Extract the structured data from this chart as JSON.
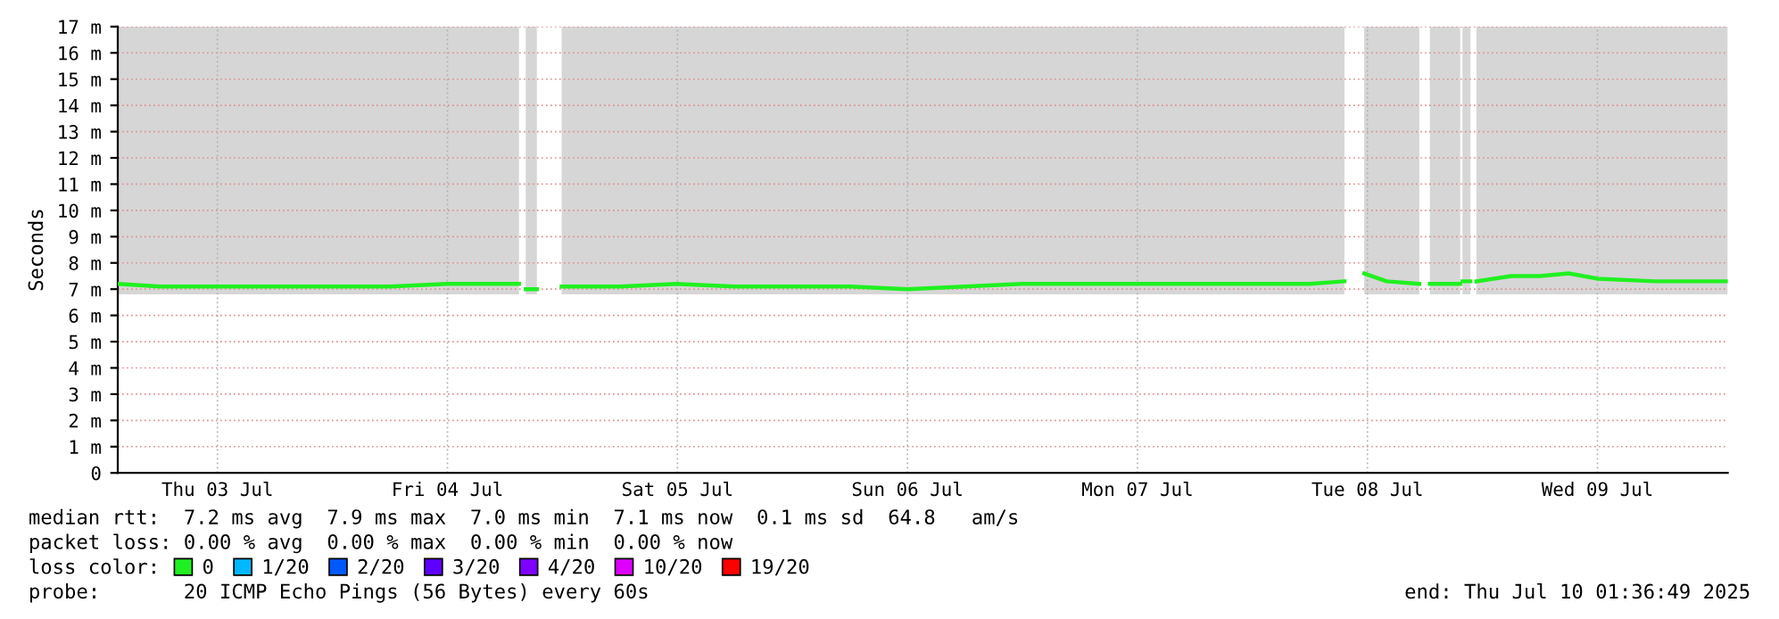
{
  "chart_data": {
    "type": "line",
    "ylabel": "Seconds",
    "xlim": [
      "2025-07-03T01:36",
      "2025-07-10T01:36"
    ],
    "xticks": [
      {
        "value": "2025-07-03T12:00",
        "label": "Thu 03 Jul"
      },
      {
        "value": "2025-07-04T12:00",
        "label": "Fri 04 Jul"
      },
      {
        "value": "2025-07-05T12:00",
        "label": "Sat 05 Jul"
      },
      {
        "value": "2025-07-06T12:00",
        "label": "Sun 06 Jul"
      },
      {
        "value": "2025-07-07T12:00",
        "label": "Mon 07 Jul"
      },
      {
        "value": "2025-07-08T12:00",
        "label": "Tue 08 Jul"
      },
      {
        "value": "2025-07-09T12:00",
        "label": "Wed 09 Jul"
      }
    ],
    "ylim": [
      0,
      17
    ],
    "yticks": [
      0,
      {
        "value": 1,
        "label": "1 m"
      },
      {
        "value": 2,
        "label": "2 m"
      },
      {
        "value": 3,
        "label": "3 m"
      },
      {
        "value": 4,
        "label": "4 m"
      },
      {
        "value": 5,
        "label": "5 m"
      },
      {
        "value": 6,
        "label": "6 m"
      },
      {
        "value": 7,
        "label": "7 m"
      },
      {
        "value": 8,
        "label": "8 m"
      },
      {
        "value": 9,
        "label": "9 m"
      },
      {
        "value": 10,
        "label": "10 m"
      },
      {
        "value": 11,
        "label": "11 m"
      },
      {
        "value": 12,
        "label": "12 m"
      },
      {
        "value": 13,
        "label": "13 m"
      },
      {
        "value": 14,
        "label": "14 m"
      },
      {
        "value": 15,
        "label": "15 m"
      },
      {
        "value": 16,
        "label": "16 m"
      },
      {
        "value": 17,
        "label": "17 m"
      }
    ],
    "grid": true,
    "legend": "bottom left",
    "x": [
      "2025-07-03T01:36",
      "2025-07-03T06:00",
      "2025-07-03T12:00",
      "2025-07-03T18:00",
      "2025-07-04T00:00",
      "2025-07-04T06:00",
      "2025-07-04T12:00",
      "2025-07-04T18:00",
      "2025-07-04T19:28",
      "2025-07-04T19:30",
      "2025-07-04T20:10",
      "2025-07-04T21:20",
      "2025-07-04T21:30",
      "2025-07-04T23:55",
      "2025-07-05T06:00",
      "2025-07-05T12:00",
      "2025-07-05T18:00",
      "2025-07-06T00:00",
      "2025-07-06T06:00",
      "2025-07-06T12:00",
      "2025-07-06T18:00",
      "2025-07-07T00:00",
      "2025-07-07T06:00",
      "2025-07-07T12:00",
      "2025-07-07T18:00",
      "2025-07-08T00:00",
      "2025-07-08T06:00",
      "2025-07-08T09:36",
      "2025-07-08T09:40",
      "2025-07-08T11:40",
      "2025-07-08T14:00",
      "2025-07-08T17:25",
      "2025-07-08T17:30",
      "2025-07-08T18:31",
      "2025-07-08T21:41",
      "2025-07-08T21:50",
      "2025-07-08T21:55",
      "2025-07-08T22:45",
      "2025-07-08T22:50",
      "2025-07-08T23:22",
      "2025-07-09T03:00",
      "2025-07-09T06:00",
      "2025-07-09T09:00",
      "2025-07-09T12:00",
      "2025-07-09T18:00",
      "2025-07-10T00:00",
      "2025-07-10T01:36"
    ],
    "series": [
      {
        "name": "0",
        "color": "#20f020",
        "values": [
          7.2,
          7.1,
          7.1,
          7.1,
          7.1,
          7.1,
          7.2,
          7.2,
          7.2,
          null,
          7.0,
          7.0,
          null,
          7.1,
          7.1,
          7.2,
          7.1,
          7.1,
          7.1,
          7.0,
          7.1,
          7.2,
          7.2,
          7.2,
          7.2,
          7.2,
          7.2,
          7.3,
          null,
          7.6,
          7.3,
          7.2,
          null,
          7.2,
          7.2,
          null,
          7.3,
          7.3,
          null,
          7.3,
          7.5,
          7.5,
          7.6,
          7.4,
          7.3,
          7.3,
          7.3
        ],
        "lower": [
          6.8,
          6.8,
          6.8,
          6.8,
          6.8,
          6.8,
          6.8,
          6.8,
          6.8,
          null,
          6.8,
          6.8,
          null,
          6.8,
          6.8,
          6.8,
          6.8,
          6.8,
          6.8,
          6.8,
          6.8,
          6.8,
          6.8,
          6.8,
          6.8,
          6.8,
          6.8,
          6.8,
          null,
          6.8,
          6.8,
          6.8,
          null,
          6.8,
          6.8,
          null,
          6.8,
          6.8,
          null,
          6.8,
          6.8,
          6.8,
          6.8,
          6.8,
          6.8,
          6.8,
          6.8
        ],
        "upper": [
          17,
          17,
          17,
          17,
          17,
          17,
          17,
          17,
          17,
          null,
          17,
          17,
          null,
          17,
          17,
          17,
          17,
          17,
          17,
          17,
          17,
          17,
          17,
          17,
          17,
          17,
          17,
          17,
          null,
          17,
          17,
          17,
          null,
          17,
          17,
          null,
          17,
          17,
          null,
          17,
          17,
          17,
          17,
          17,
          17,
          17,
          17
        ]
      },
      {
        "name": "1/20",
        "color": "#00b8ff",
        "values": [
          null,
          null,
          null,
          null,
          null,
          null,
          null,
          null,
          null,
          null,
          null,
          null,
          null,
          null,
          null,
          null,
          null,
          null,
          null,
          null,
          null,
          null,
          null,
          null,
          null,
          null,
          null,
          null,
          null,
          null,
          null,
          null,
          null,
          null,
          null,
          null,
          null,
          null,
          null,
          null,
          null,
          null,
          null,
          null,
          null,
          null,
          null
        ]
      },
      {
        "name": "2/20",
        "color": "#0059ff",
        "values": [
          null,
          null,
          null,
          null,
          null,
          null,
          null,
          null,
          null,
          null,
          null,
          null,
          null,
          null,
          null,
          null,
          null,
          null,
          null,
          null,
          null,
          null,
          null,
          null,
          null,
          null,
          null,
          null,
          null,
          null,
          null,
          null,
          null,
          null,
          null,
          null,
          null,
          null,
          null,
          null,
          null,
          null,
          null,
          null,
          null,
          null,
          null
        ]
      },
      {
        "name": "3/20",
        "color": "#5e00ff",
        "values": [
          null,
          null,
          null,
          null,
          null,
          null,
          null,
          null,
          null,
          null,
          null,
          null,
          null,
          null,
          null,
          null,
          null,
          null,
          null,
          null,
          null,
          null,
          null,
          null,
          null,
          null,
          null,
          null,
          null,
          null,
          null,
          null,
          null,
          null,
          null,
          null,
          null,
          null,
          null,
          null,
          null,
          null,
          null,
          null,
          null,
          null,
          null
        ]
      },
      {
        "name": "4/20",
        "color": "#7e00ff",
        "values": [
          null,
          null,
          null,
          null,
          null,
          null,
          null,
          null,
          null,
          null,
          null,
          null,
          null,
          null,
          null,
          null,
          null,
          null,
          null,
          null,
          null,
          null,
          null,
          null,
          null,
          null,
          null,
          null,
          null,
          null,
          null,
          null,
          null,
          null,
          null,
          null,
          null,
          null,
          null,
          null,
          null,
          null,
          null,
          null,
          null,
          null,
          null
        ]
      },
      {
        "name": "10/20",
        "color": "#dd00ff",
        "values": [
          null,
          null,
          null,
          null,
          null,
          null,
          null,
          null,
          null,
          null,
          null,
          null,
          null,
          null,
          null,
          null,
          null,
          null,
          null,
          null,
          null,
          null,
          null,
          null,
          null,
          null,
          null,
          null,
          null,
          null,
          null,
          null,
          null,
          null,
          null,
          null,
          null,
          null,
          null,
          null,
          null,
          null,
          null,
          null,
          null,
          null,
          null
        ]
      },
      {
        "name": "19/20",
        "color": "#ff0000",
        "values": [
          null,
          null,
          null,
          null,
          null,
          null,
          null,
          null,
          null,
          null,
          null,
          null,
          null,
          null,
          null,
          null,
          null,
          null,
          null,
          null,
          null,
          null,
          null,
          null,
          null,
          null,
          null,
          null,
          null,
          null,
          null,
          null,
          null,
          null,
          null,
          null,
          null,
          null,
          null,
          null,
          null,
          null,
          null,
          null,
          null,
          null,
          null
        ]
      }
    ],
    "annotations": [
      "median rtt:  7.2 ms avg  7.9 ms max  7.0 ms min  7.1 ms now  0.1 ms sd  64.8   am/s",
      "packet loss: 0.00 % avg  0.00 % max  0.00 % min  0.00 % now",
      "loss color:",
      "probe:       20 ICMP Echo Pings (56 Bytes) every 60s",
      "end: Thu Jul 10 01:36:49 2025"
    ]
  }
}
